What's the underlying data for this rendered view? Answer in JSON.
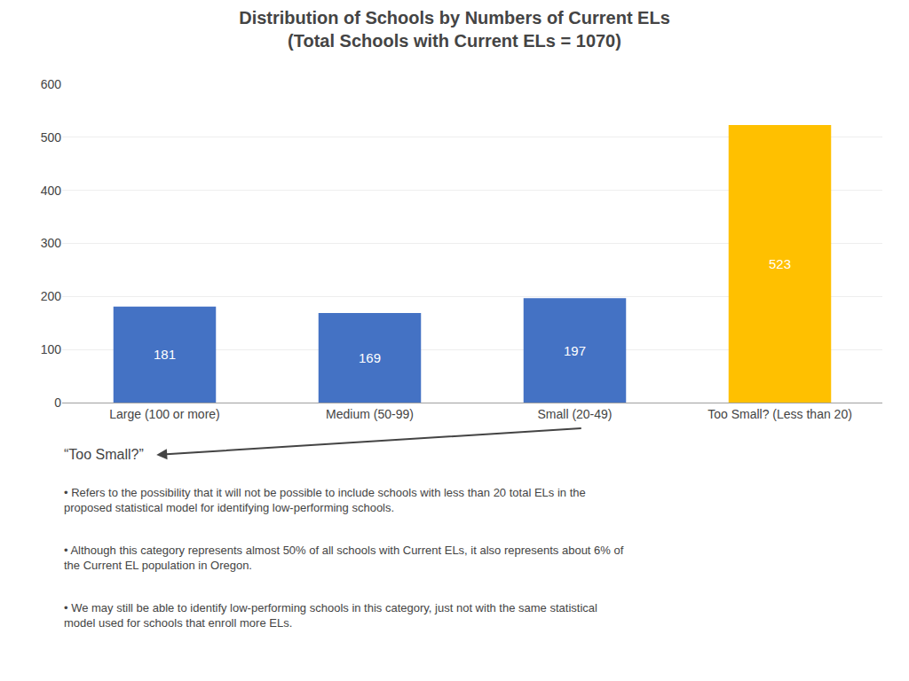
{
  "chart_data": {
    "type": "bar",
    "title": "Distribution of Schools by Numbers of Current ELs",
    "subtitle": "(Total Schools with Current ELs = 1070)",
    "categories": [
      "Large (100 or more)",
      "Medium (50-99)",
      "Small (20-49)",
      "Too Small? (Less than 20)"
    ],
    "values": [
      181,
      169,
      197,
      523
    ],
    "colors": [
      "#4472C4",
      "#4472C4",
      "#4472C4",
      "#FFC000"
    ],
    "ylim": [
      0,
      600
    ],
    "yticks": [
      0,
      100,
      200,
      300,
      400,
      500,
      600
    ],
    "grid": true,
    "data_labels": true,
    "annotations": [
      "“Too Small?”",
      "• Refers to the possibility that it will not be possible to include schools with less than 20 total ELs in the\nproposed statistical model for identifying low-performing schools.",
      "• Although this category represents almost 50% of all schools with Current ELs, it also represents about 6% of\nthe Current EL population in Oregon.",
      "• We may still be able to identify low-performing schools in this category, just not with the same statistical\nmodel used for schools that enroll more ELs."
    ]
  }
}
